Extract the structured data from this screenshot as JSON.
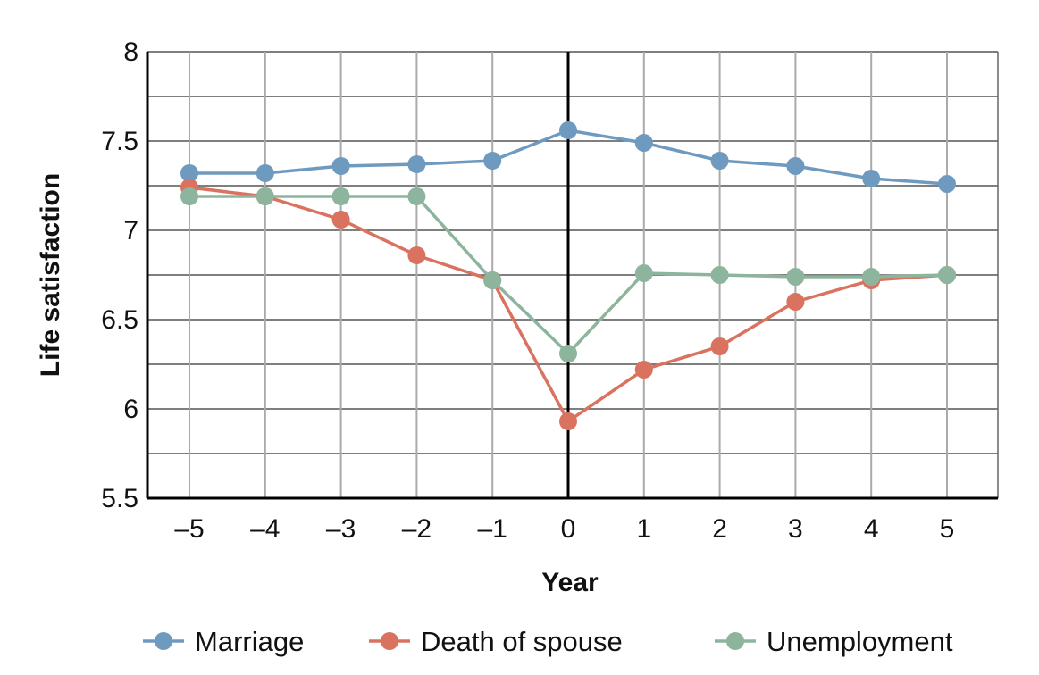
{
  "chart_data": {
    "type": "line",
    "title": "",
    "xlabel": "Year",
    "ylabel": "Life satisfaction",
    "x": [
      -5,
      -4,
      -3,
      -2,
      -1,
      0,
      1,
      2,
      3,
      4,
      5
    ],
    "x_tick_labels": [
      "–5",
      "–4",
      "–3",
      "–2",
      "–1",
      "0",
      "1",
      "2",
      "3",
      "4",
      "5"
    ],
    "ylim": [
      5.5,
      8
    ],
    "y_ticks": [
      5.5,
      6,
      6.5,
      7,
      7.5,
      8
    ],
    "y_tick_labels": [
      "5.5",
      "6",
      "6.5",
      "7",
      "7.5",
      "8"
    ],
    "grid": true,
    "legend_position": "bottom",
    "series": [
      {
        "name": "Marriage",
        "color": "#6f9ac0",
        "values": [
          7.32,
          7.32,
          7.36,
          7.37,
          7.39,
          7.56,
          7.49,
          7.39,
          7.36,
          7.29,
          7.26
        ]
      },
      {
        "name": "Death of spouse",
        "color": "#d9735f",
        "values": [
          7.24,
          7.19,
          7.06,
          6.86,
          6.72,
          5.93,
          6.22,
          6.35,
          6.6,
          6.72,
          6.75
        ]
      },
      {
        "name": "Unemployment",
        "color": "#8db59e",
        "values": [
          7.19,
          7.19,
          7.19,
          7.19,
          6.72,
          6.31,
          6.76,
          6.75,
          6.74,
          6.74,
          6.75
        ]
      }
    ]
  }
}
